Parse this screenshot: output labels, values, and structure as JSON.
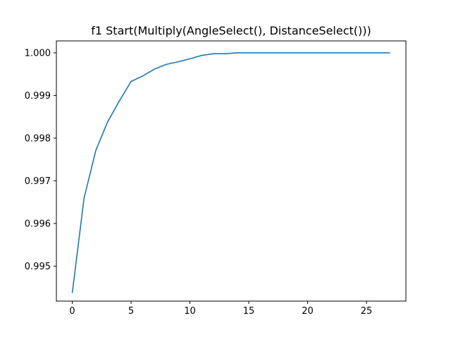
{
  "chart_data": {
    "type": "line",
    "title": "f1 Start(Multiply(AngleSelect(), DistanceSelect()))",
    "xlabel": "",
    "ylabel": "",
    "xlim": [
      -1.35,
      28.35
    ],
    "ylim": [
      0.99418,
      1.00028
    ],
    "x_ticks": [
      0,
      5,
      10,
      15,
      20,
      25
    ],
    "y_ticks": [
      0.995,
      0.996,
      0.997,
      0.998,
      0.999,
      1.0
    ],
    "y_tick_labels": [
      "0.995",
      "0.996",
      "0.997",
      "0.998",
      "0.999",
      "1.000"
    ],
    "grid": false,
    "legend": "none",
    "series": [
      {
        "color": "#1f77b4",
        "x": [
          0,
          1,
          2,
          3,
          4,
          5,
          6,
          7,
          8,
          9,
          10,
          11,
          12,
          13,
          14,
          15,
          16,
          17,
          18,
          19,
          20,
          21,
          22,
          23,
          24,
          25,
          26,
          27
        ],
        "y": [
          0.99437,
          0.99659,
          0.99771,
          0.99838,
          0.99887,
          0.99933,
          0.99946,
          0.99962,
          0.99973,
          0.99979,
          0.99986,
          0.99994,
          0.99998,
          0.99998,
          1.0,
          1.0,
          1.0,
          1.0,
          1.0,
          1.0,
          1.0,
          1.0,
          1.0,
          1.0,
          1.0,
          1.0,
          1.0,
          1.0
        ]
      }
    ]
  }
}
